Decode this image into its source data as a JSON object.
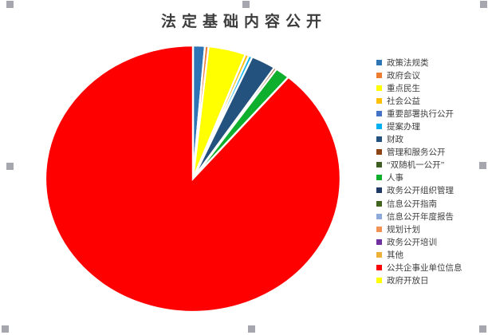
{
  "chart": {
    "title": "法定基础内容公开",
    "background_color": "#ffffff",
    "selected": true,
    "handle_color": "#a6a6ae"
  },
  "chart_data": {
    "type": "pie",
    "title": "法定基础内容公开",
    "legend_position": "right",
    "start_angle_deg": 0,
    "direction": "clockwise",
    "slice_border_color": "#ffffff",
    "values_unit": "percent (estimated from slice angles)",
    "series": [
      {
        "label": "政策法规类",
        "value": 1.3,
        "color": "#2E75B6"
      },
      {
        "label": "政府会议",
        "value": 0.4,
        "color": "#ED7D31"
      },
      {
        "label": "重点民生",
        "value": 4.1,
        "color": "#FFFF00"
      },
      {
        "label": "社会公益",
        "value": 0.4,
        "color": "#FFC000"
      },
      {
        "label": "重要部署执行公开",
        "value": 0,
        "color": "#4472C4"
      },
      {
        "label": "提案办理",
        "value": 0.4,
        "color": "#00B0F0"
      },
      {
        "label": "财政",
        "value": 2.7,
        "color": "#24527E"
      },
      {
        "label": "管理和服务公开",
        "value": 0.3,
        "color": "#8C4415"
      },
      {
        "label": "“双随机一公开”",
        "value": 0,
        "color": "#3F5E24"
      },
      {
        "label": "人事",
        "value": 1.6,
        "color": "#0FAF2E"
      },
      {
        "label": "政务公开组织管理",
        "value": 0,
        "color": "#203864"
      },
      {
        "label": "信息公开指南",
        "value": 0,
        "color": "#41641F"
      },
      {
        "label": "信息公开年度报告",
        "value": 0,
        "color": "#8EAADB"
      },
      {
        "label": "规划计划",
        "value": 0,
        "color": "#F09355"
      },
      {
        "label": "政务公开培训",
        "value": 0,
        "color": "#7030A0"
      },
      {
        "label": "其他",
        "value": 0,
        "color": "#EDB13A"
      },
      {
        "label": "公共企事业单位信息",
        "value": 88.8,
        "color": "#FF0000"
      },
      {
        "label": "政府开放日",
        "value": 0,
        "color": "#FFFF00"
      }
    ]
  }
}
